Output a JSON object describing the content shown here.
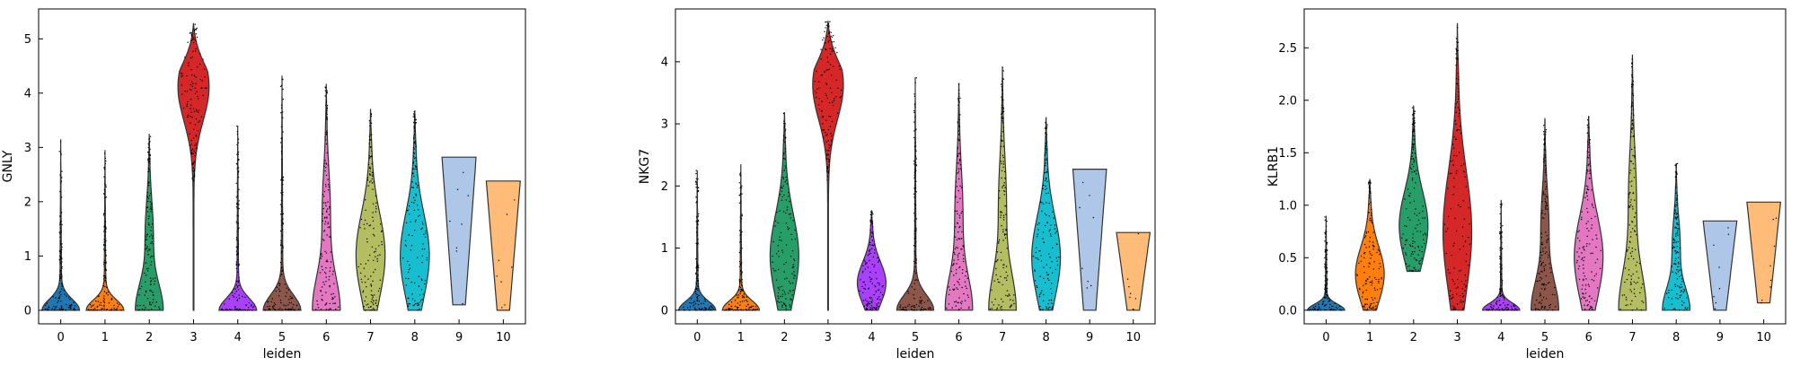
{
  "figure": {
    "background": "#ffffff"
  },
  "palette": [
    "#1f77b4",
    "#ff7f0e",
    "#279e68",
    "#d62728",
    "#aa40fc",
    "#8c564b",
    "#e377c2",
    "#b5bd61",
    "#17becf",
    "#aec7e8",
    "#ffbb78"
  ],
  "chart_data": [
    {
      "type": "violin",
      "xlabel": "leiden",
      "ylabel": "GNLY",
      "categories": [
        "0",
        "1",
        "2",
        "3",
        "4",
        "5",
        "6",
        "7",
        "8",
        "9",
        "10"
      ],
      "ylim": [
        -0.25,
        5.55
      ],
      "yticks": [
        0,
        1,
        2,
        3,
        4,
        5
      ],
      "ytick_labels": [
        "0",
        "1",
        "2",
        "3",
        "4",
        "5"
      ],
      "violins": [
        {
          "max": 3.15,
          "peak": 0.05,
          "width": 0.9,
          "shape": "bottom"
        },
        {
          "max": 2.95,
          "peak": 0.05,
          "width": 0.9,
          "shape": "bottom"
        },
        {
          "max": 3.25,
          "peak": 0.05,
          "width": 0.9,
          "shape": "bottom-wide"
        },
        {
          "min": 0.0,
          "max": 5.28,
          "peak": 4.7,
          "width": 0.9,
          "shape": "upper"
        },
        {
          "max": 3.4,
          "peak": 0.05,
          "width": 0.9,
          "shape": "bottom"
        },
        {
          "max": 4.32,
          "peak": 0.05,
          "width": 0.9,
          "shape": "bottom"
        },
        {
          "max": 4.17,
          "peak": 0.08,
          "width": 0.9,
          "shape": "bottom-wide"
        },
        {
          "max": 3.7,
          "peak": 1.0,
          "width": 0.9,
          "shape": "wide"
        },
        {
          "max": 3.68,
          "peak": 1.0,
          "width": 0.9,
          "shape": "wide"
        },
        {
          "min": 0.1,
          "max": 2.82,
          "peak": 2.8,
          "width": 0.9,
          "shape": "top-flat"
        },
        {
          "min": 0.0,
          "max": 2.38,
          "peak": 2.35,
          "width": 0.9,
          "shape": "top-flat"
        }
      ]
    },
    {
      "type": "violin",
      "xlabel": "leiden",
      "ylabel": "NKG7",
      "categories": [
        "0",
        "1",
        "2",
        "3",
        "4",
        "5",
        "6",
        "7",
        "8",
        "9",
        "10"
      ],
      "ylim": [
        -0.22,
        4.85
      ],
      "yticks": [
        0,
        1,
        2,
        3,
        4
      ],
      "ytick_labels": [
        "0",
        "1",
        "2",
        "3",
        "4"
      ],
      "violins": [
        {
          "max": 2.25,
          "peak": 0.05,
          "width": 0.9,
          "shape": "bottom"
        },
        {
          "max": 2.35,
          "peak": 0.05,
          "width": 0.9,
          "shape": "bottom"
        },
        {
          "max": 3.18,
          "peak": 1.7,
          "width": 0.9,
          "shape": "wide"
        },
        {
          "min": 0.0,
          "max": 4.65,
          "peak": 4.2,
          "width": 0.9,
          "shape": "upper"
        },
        {
          "max": 1.6,
          "peak": 0.8,
          "width": 0.9,
          "shape": "wide"
        },
        {
          "max": 3.75,
          "peak": 0.05,
          "width": 0.9,
          "shape": "bottom"
        },
        {
          "max": 3.65,
          "peak": 0.3,
          "width": 0.9,
          "shape": "bottom-wide"
        },
        {
          "max": 3.92,
          "peak": 0.3,
          "width": 0.9,
          "shape": "bottom-wide"
        },
        {
          "max": 3.1,
          "peak": 1.0,
          "width": 0.9,
          "shape": "wide"
        },
        {
          "min": 0.0,
          "max": 2.27,
          "peak": 2.25,
          "width": 0.9,
          "shape": "top-flat"
        },
        {
          "min": 0.0,
          "max": 1.25,
          "peak": 1.22,
          "width": 0.9,
          "shape": "top-flat"
        }
      ]
    },
    {
      "type": "violin",
      "xlabel": "leiden",
      "ylabel": "KLRB1",
      "categories": [
        "0",
        "1",
        "2",
        "3",
        "4",
        "5",
        "6",
        "7",
        "8",
        "9",
        "10"
      ],
      "ylim": [
        -0.13,
        2.87
      ],
      "yticks": [
        0,
        0.5,
        1,
        1.5,
        2,
        2.5
      ],
      "ytick_labels": [
        "0.0",
        "0.5",
        "1.0",
        "1.5",
        "2.0",
        "2.5"
      ],
      "violins": [
        {
          "max": 0.9,
          "peak": 0.02,
          "width": 0.9,
          "shape": "bottom"
        },
        {
          "max": 1.25,
          "peak": 0.55,
          "width": 0.9,
          "shape": "wide"
        },
        {
          "min": 0.37,
          "max": 1.95,
          "peak": 1.25,
          "width": 0.9,
          "shape": "wide"
        },
        {
          "min": 0.0,
          "max": 2.73,
          "peak": 1.75,
          "width": 0.9,
          "shape": "wide"
        },
        {
          "max": 1.05,
          "peak": 0.05,
          "width": 0.9,
          "shape": "bottom"
        },
        {
          "max": 1.83,
          "peak": 0.25,
          "width": 0.9,
          "shape": "bottom-wide"
        },
        {
          "max": 1.85,
          "peak": 0.5,
          "width": 0.9,
          "shape": "wide"
        },
        {
          "max": 2.43,
          "peak": 0.3,
          "width": 0.9,
          "shape": "bottom-wide"
        },
        {
          "max": 1.4,
          "peak": 0.3,
          "width": 0.9,
          "shape": "bottom-wide"
        },
        {
          "min": 0.0,
          "max": 0.85,
          "peak": 0.83,
          "width": 0.9,
          "shape": "top-flat"
        },
        {
          "min": 0.07,
          "max": 1.03,
          "peak": 1.0,
          "width": 0.9,
          "shape": "top-flat"
        }
      ]
    }
  ]
}
